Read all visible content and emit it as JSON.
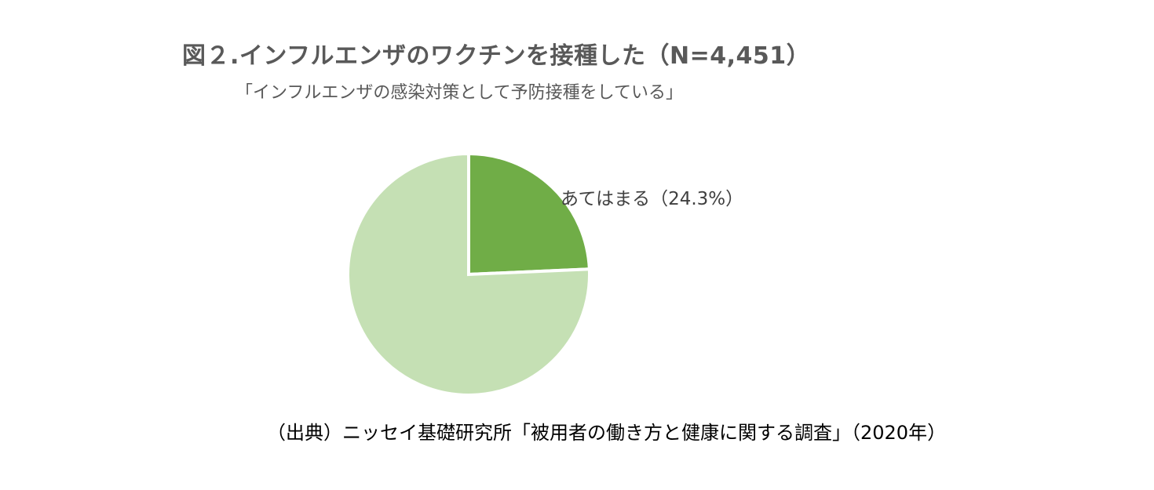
{
  "title": "図２.インフルエンザのワクチンを接種した（N=4,451）",
  "subtitle": "「インフルエンザの感染対策として予防接種をしている」",
  "source": "（出典）ニッセイ基礎研究所「被用者の働き方と健康に関する調査」（2020年）",
  "chart_data": {
    "type": "pie",
    "title": "図２.インフルエンザのワクチンを接種した（N=4,451）",
    "subtitle": "「インフルエンザの感染対策として予防接種をしている」",
    "slices": [
      {
        "label": "あてはまる（24.3%）",
        "value": 24.3,
        "color": "#70AD47",
        "show_label": true
      },
      {
        "label": "",
        "value": 75.7,
        "color": "#C5E0B4",
        "show_label": false
      }
    ]
  }
}
